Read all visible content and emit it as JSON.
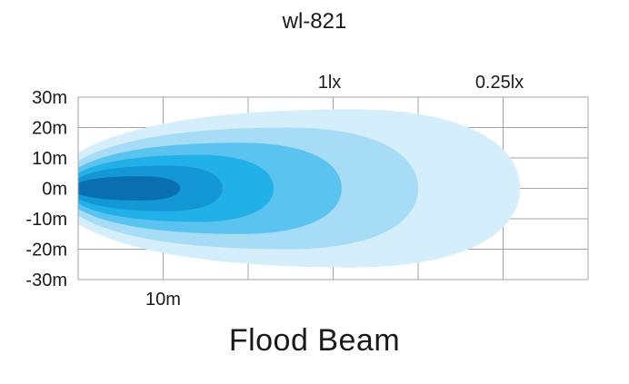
{
  "title": "wl-821",
  "subtitle": "Flood Beam",
  "chart_data": {
    "type": "area",
    "title": "wl-821",
    "subtitle": "Flood Beam",
    "xlabel": "",
    "ylabel": "",
    "x_unit": "m",
    "y_unit": "m",
    "xlim": [
      0,
      50
    ],
    "ylim": [
      -30,
      30
    ],
    "grid": true,
    "y_ticks": [
      "30m",
      "20m",
      "10m",
      "0m",
      "-10m",
      "-20m",
      "-30m"
    ],
    "y_tick_values": [
      30,
      20,
      10,
      0,
      -10,
      -20,
      -30
    ],
    "x_ticks": [
      "10m"
    ],
    "x_tick_values": [
      10
    ],
    "top_labels": [
      {
        "label": "1lx",
        "x": 30
      },
      {
        "label": "0.25lx",
        "x": 50
      }
    ],
    "series": [
      {
        "length": 52,
        "half_width": 26,
        "color": "#d5eefb"
      },
      {
        "length": 40,
        "half_width": 20,
        "color": "#a6dcf6"
      },
      {
        "length": 31,
        "half_width": 15,
        "color": "#5bc3ef"
      },
      {
        "length": 23,
        "half_width": 11,
        "color": "#22b0e8"
      },
      {
        "length": 17,
        "half_width": 7.5,
        "color": "#1498d5"
      },
      {
        "length": 12,
        "half_width": 4,
        "color": "#0a6fb0"
      }
    ],
    "grid_color": "#a3a3a3"
  }
}
